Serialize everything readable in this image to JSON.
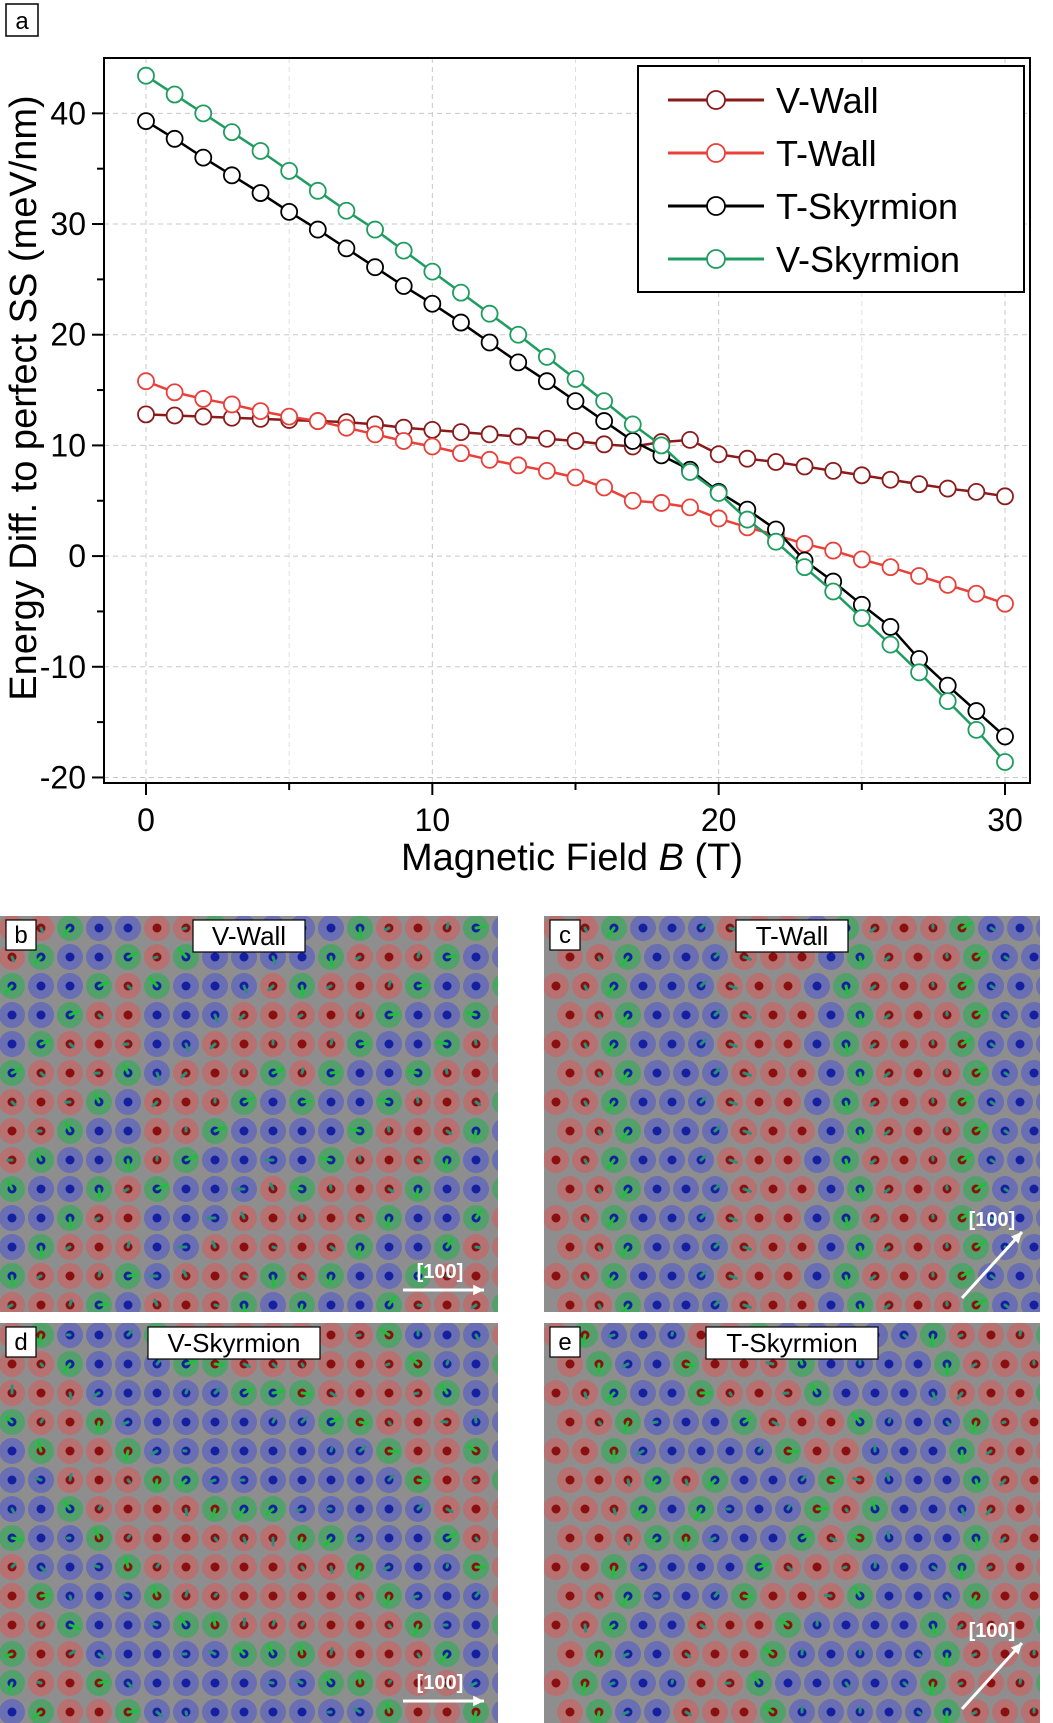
{
  "chart_data": {
    "type": "line",
    "panel_label": "a",
    "xlabel_prefix": "Magnetic Field ",
    "xlabel_italic": "B",
    "xlabel_suffix": " (T)",
    "ylabel": "Energy Diff. to perfect SS (meV/nm)",
    "xlim": [
      0,
      31
    ],
    "ylim": [
      -20.5,
      45
    ],
    "xticks": [
      0,
      10,
      20,
      30
    ],
    "yticks": [
      -20,
      -10,
      0,
      10,
      20,
      30,
      40
    ],
    "grid": true,
    "legend_position": "top-right",
    "x": [
      0,
      1,
      2,
      3,
      4,
      5,
      6,
      7,
      8,
      9,
      10,
      11,
      12,
      13,
      14,
      15,
      16,
      17,
      18,
      19,
      20,
      21,
      22,
      23,
      24,
      25,
      26,
      27,
      28,
      29,
      30
    ],
    "series": [
      {
        "name": "V-Wall",
        "color": "#8b1a1a",
        "values": [
          12.8,
          12.7,
          12.6,
          12.5,
          12.4,
          12.3,
          12.2,
          12.1,
          11.9,
          11.6,
          11.4,
          11.2,
          11.0,
          10.8,
          10.6,
          10.4,
          10.1,
          9.9,
          10.3,
          10.5,
          9.2,
          8.8,
          8.5,
          8.1,
          7.7,
          7.3,
          6.9,
          6.5,
          6.1,
          5.8,
          5.4
        ]
      },
      {
        "name": "T-Wall",
        "color": "#e8403a",
        "values": [
          15.8,
          14.8,
          14.2,
          13.7,
          13.1,
          12.6,
          12.2,
          11.6,
          11.0,
          10.4,
          9.9,
          9.3,
          8.7,
          8.2,
          7.7,
          7.1,
          6.2,
          5.0,
          4.8,
          4.4,
          3.4,
          2.6,
          1.9,
          1.1,
          0.5,
          -0.3,
          -1.0,
          -1.8,
          -2.6,
          -3.4,
          -4.3
        ]
      },
      {
        "name": "T-Skyrmion",
        "color": "#000000",
        "values": [
          39.3,
          37.7,
          36.0,
          34.4,
          32.8,
          31.1,
          29.5,
          27.8,
          26.1,
          24.4,
          22.8,
          21.1,
          19.3,
          17.5,
          15.8,
          14.0,
          12.2,
          10.4,
          9.1,
          7.8,
          5.8,
          4.2,
          2.4,
          -0.4,
          -2.3,
          -4.4,
          -6.4,
          -9.3,
          -11.7,
          -14.0,
          -16.3
        ]
      },
      {
        "name": "V-Skyrmion",
        "color": "#1f9d60",
        "values": [
          43.4,
          41.7,
          40.0,
          38.3,
          36.6,
          34.8,
          33.0,
          31.2,
          29.5,
          27.6,
          25.7,
          23.8,
          21.9,
          20.0,
          18.0,
          16.0,
          14.0,
          11.9,
          10.0,
          7.6,
          5.7,
          3.3,
          1.3,
          -1.0,
          -3.2,
          -5.6,
          -8.0,
          -10.5,
          -13.1,
          -15.7,
          -18.6
        ]
      }
    ]
  },
  "insets": [
    {
      "label": "b",
      "title": "V-Wall",
      "direction": "[100]"
    },
    {
      "label": "c",
      "title": "T-Wall",
      "direction": "[100]"
    },
    {
      "label": "d",
      "title": "V-Skyrmion",
      "direction": "[100]"
    },
    {
      "label": "e",
      "title": "T-Skyrmion",
      "direction": "[100]"
    }
  ],
  "colors": {
    "spin_up": "#d85a5a",
    "spin_down": "#4a55d0",
    "in_plane": "#22b14c"
  }
}
